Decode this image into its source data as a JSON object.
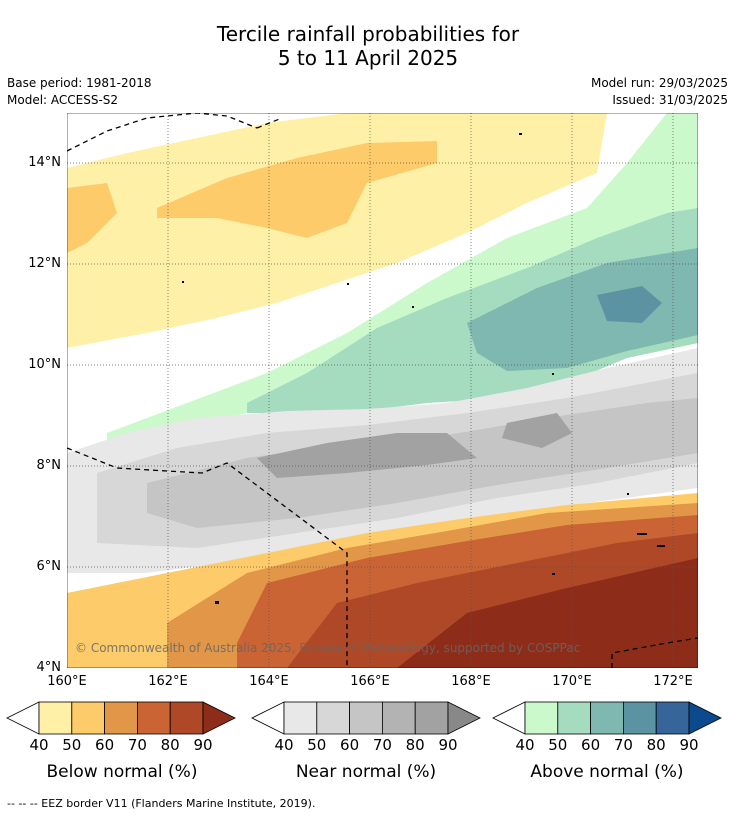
{
  "title_line1": "Tercile rainfall probabilities for",
  "title_line2": "5 to 11 April 2025",
  "meta": {
    "base_period": "Base period: 1981-2018",
    "model": "Model: ACCESS-S2",
    "model_run": "Model run: 29/03/2025",
    "issued": "Issued: 31/03/2025"
  },
  "axes": {
    "lat_labels": [
      "14°N",
      "12°N",
      "10°N",
      "8°N",
      "6°N",
      "4°N"
    ],
    "lon_labels": [
      "160°E",
      "162°E",
      "164°E",
      "166°E",
      "168°E",
      "170°E",
      "172°E"
    ]
  },
  "copyright": "© Commonwealth of Australia 2025, Bureau of Meteorology, supported by COSPPac",
  "legends": [
    {
      "title": "Below normal (%)",
      "ticks": [
        "40",
        "50",
        "60",
        "70",
        "80",
        "90"
      ],
      "colors": [
        "#fff0a8",
        "#fdcb6a",
        "#e29748",
        "#cb6434",
        "#ae4827",
        "#8e2c1a"
      ]
    },
    {
      "title": "Near normal (%)",
      "ticks": [
        "40",
        "50",
        "60",
        "70",
        "80",
        "90"
      ],
      "colors": [
        "#e8e8e8",
        "#d7d7d7",
        "#c5c5c5",
        "#b3b3b3",
        "#a2a2a2",
        "#888888"
      ]
    },
    {
      "title": "Above normal (%)",
      "ticks": [
        "40",
        "50",
        "60",
        "70",
        "80",
        "90"
      ],
      "colors": [
        "#cbf9cb",
        "#a5dcbf",
        "#7eb8b0",
        "#5b93a3",
        "#356599",
        "#0c4a8e"
      ]
    }
  ],
  "footnote": "-- -- -- EEZ border V11 (Flanders Marine Institute, 2019)."
}
